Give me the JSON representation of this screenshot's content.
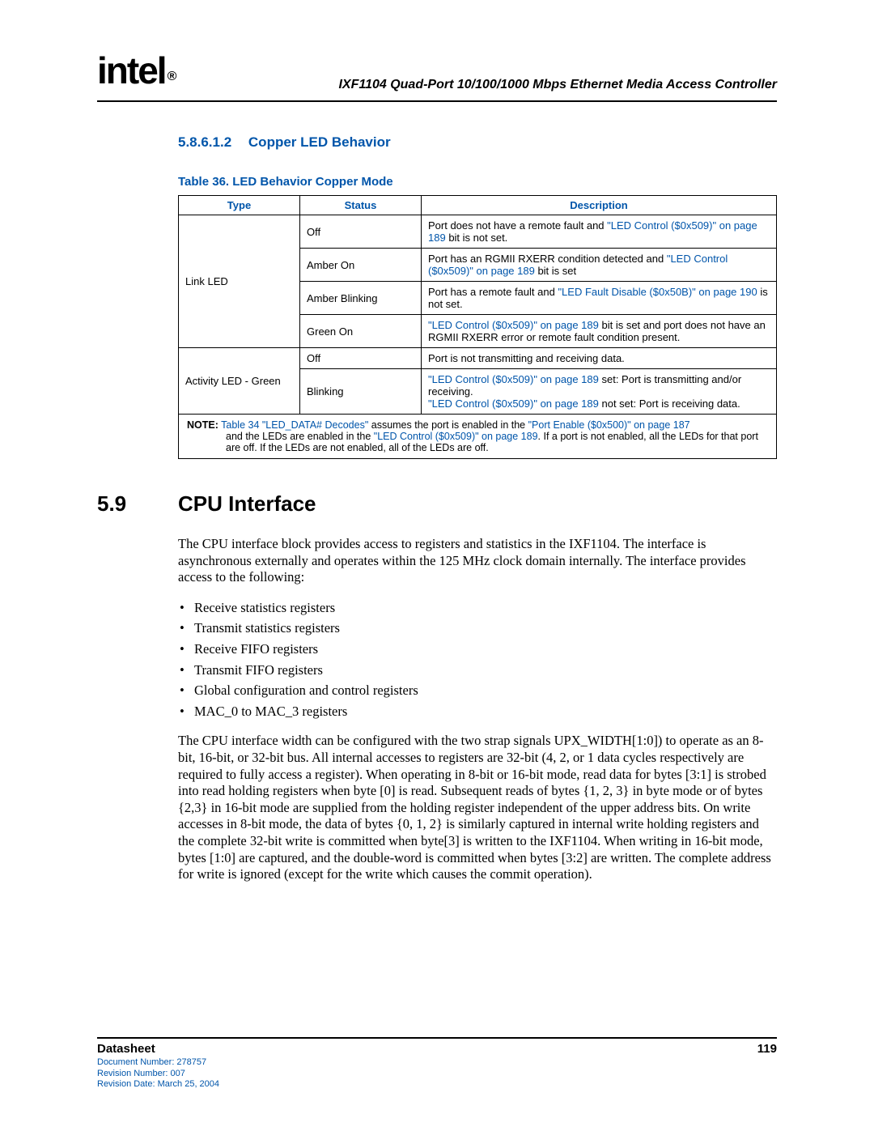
{
  "header": {
    "logo_text": "intel",
    "logo_reg": "®",
    "doc_title": "IXF1104 Quad-Port 10/100/1000 Mbps Ethernet Media Access Controller"
  },
  "section1": {
    "num": "5.8.6.1.2",
    "title": "Copper LED Behavior"
  },
  "table": {
    "caption": "Table 36. LED Behavior Copper Mode",
    "headers": {
      "type": "Type",
      "status": "Status",
      "desc": "Description"
    },
    "link_led_label": "Link LED",
    "activity_led_label": "Activity LED - Green",
    "rows": [
      {
        "status": "Off",
        "desc_pre": "Port does not have a remote fault and ",
        "desc_link": "\"LED Control ($0x509)\" on page 189",
        "desc_post": " bit is not set."
      },
      {
        "status": "Amber On",
        "desc_pre": "Port has an RGMII RXERR condition detected and ",
        "desc_link": "\"LED Control ($0x509)\" on page 189",
        "desc_post": " bit is set"
      },
      {
        "status": "Amber Blinking",
        "desc_pre": "Port has a remote fault and ",
        "desc_link": "\"LED Fault Disable ($0x50B)\" on page 190",
        "desc_post": " is not set."
      },
      {
        "status": "Green On",
        "desc_link": "\"LED Control ($0x509)\" on page 189",
        "desc_post": " bit is set and port does not have an RGMII RXERR error or remote fault condition present."
      },
      {
        "status": "Off",
        "desc_plain": "Port is not transmitting and receiving data."
      },
      {
        "status": "Blinking",
        "desc_link1": "\"LED Control ($0x509)\" on page 189",
        "desc_post1": " set: Port is transmitting and/or receiving.",
        "desc_link2": "\"LED Control ($0x509)\" on page 189",
        "desc_post2": " not set: Port is receiving data."
      }
    ],
    "note_label": "NOTE:",
    "note_link1": "Table 34 \"LED_DATA# Decodes\"",
    "note_mid1": " assumes the port is enabled in the ",
    "note_link2": "\"Port Enable ($0x500)\" on page 187",
    "note_mid2": " and the LEDs are enabled in the ",
    "note_link3": "\"LED Control ($0x509)\" on page 189",
    "note_post": ". If a port is not enabled, all the LEDs for that port are off. If the LEDs are not enabled, all of the LEDs are off."
  },
  "section2": {
    "num": "5.9",
    "title": "CPU Interface",
    "para1": "The CPU interface block provides access to registers and statistics in the IXF1104. The interface is asynchronous externally and operates within the 125 MHz clock domain internally. The interface provides access to the following:",
    "bullets": [
      "Receive statistics registers",
      "Transmit statistics registers",
      "Receive FIFO registers",
      "Transmit FIFO registers",
      "Global configuration and control registers",
      "MAC_0 to MAC_3 registers"
    ],
    "para2": "The CPU interface width can be configured with the two strap signals UPX_WIDTH[1:0]) to operate as an 8-bit, 16-bit, or 32-bit bus. All internal accesses to registers are 32-bit (4, 2, or 1 data cycles respectively are required to fully access a register). When operating in 8-bit or 16-bit mode, read data for bytes [3:1] is strobed into read holding registers when byte [0] is read. Subsequent reads of bytes {1, 2, 3} in byte mode or of bytes {2,3} in 16-bit mode are supplied from the holding register independent of the upper address bits. On write accesses in 8-bit mode, the data of bytes {0, 1, 2} is similarly captured in internal write holding registers and the complete 32-bit write is committed when byte[3] is written to the IXF1104. When writing in 16-bit mode, bytes [1:0] are captured, and the double-word is committed when bytes [3:2] are written. The complete address for write is ignored (except for the write which causes the commit operation)."
  },
  "footer": {
    "left": "Datasheet",
    "page": "119",
    "meta1": "Document Number: 278757",
    "meta2": "Revision Number: 007",
    "meta3": "Revision Date: March 25, 2004"
  },
  "colors": {
    "accent": "#0055aa",
    "text": "#000000",
    "bg": "#ffffff"
  }
}
